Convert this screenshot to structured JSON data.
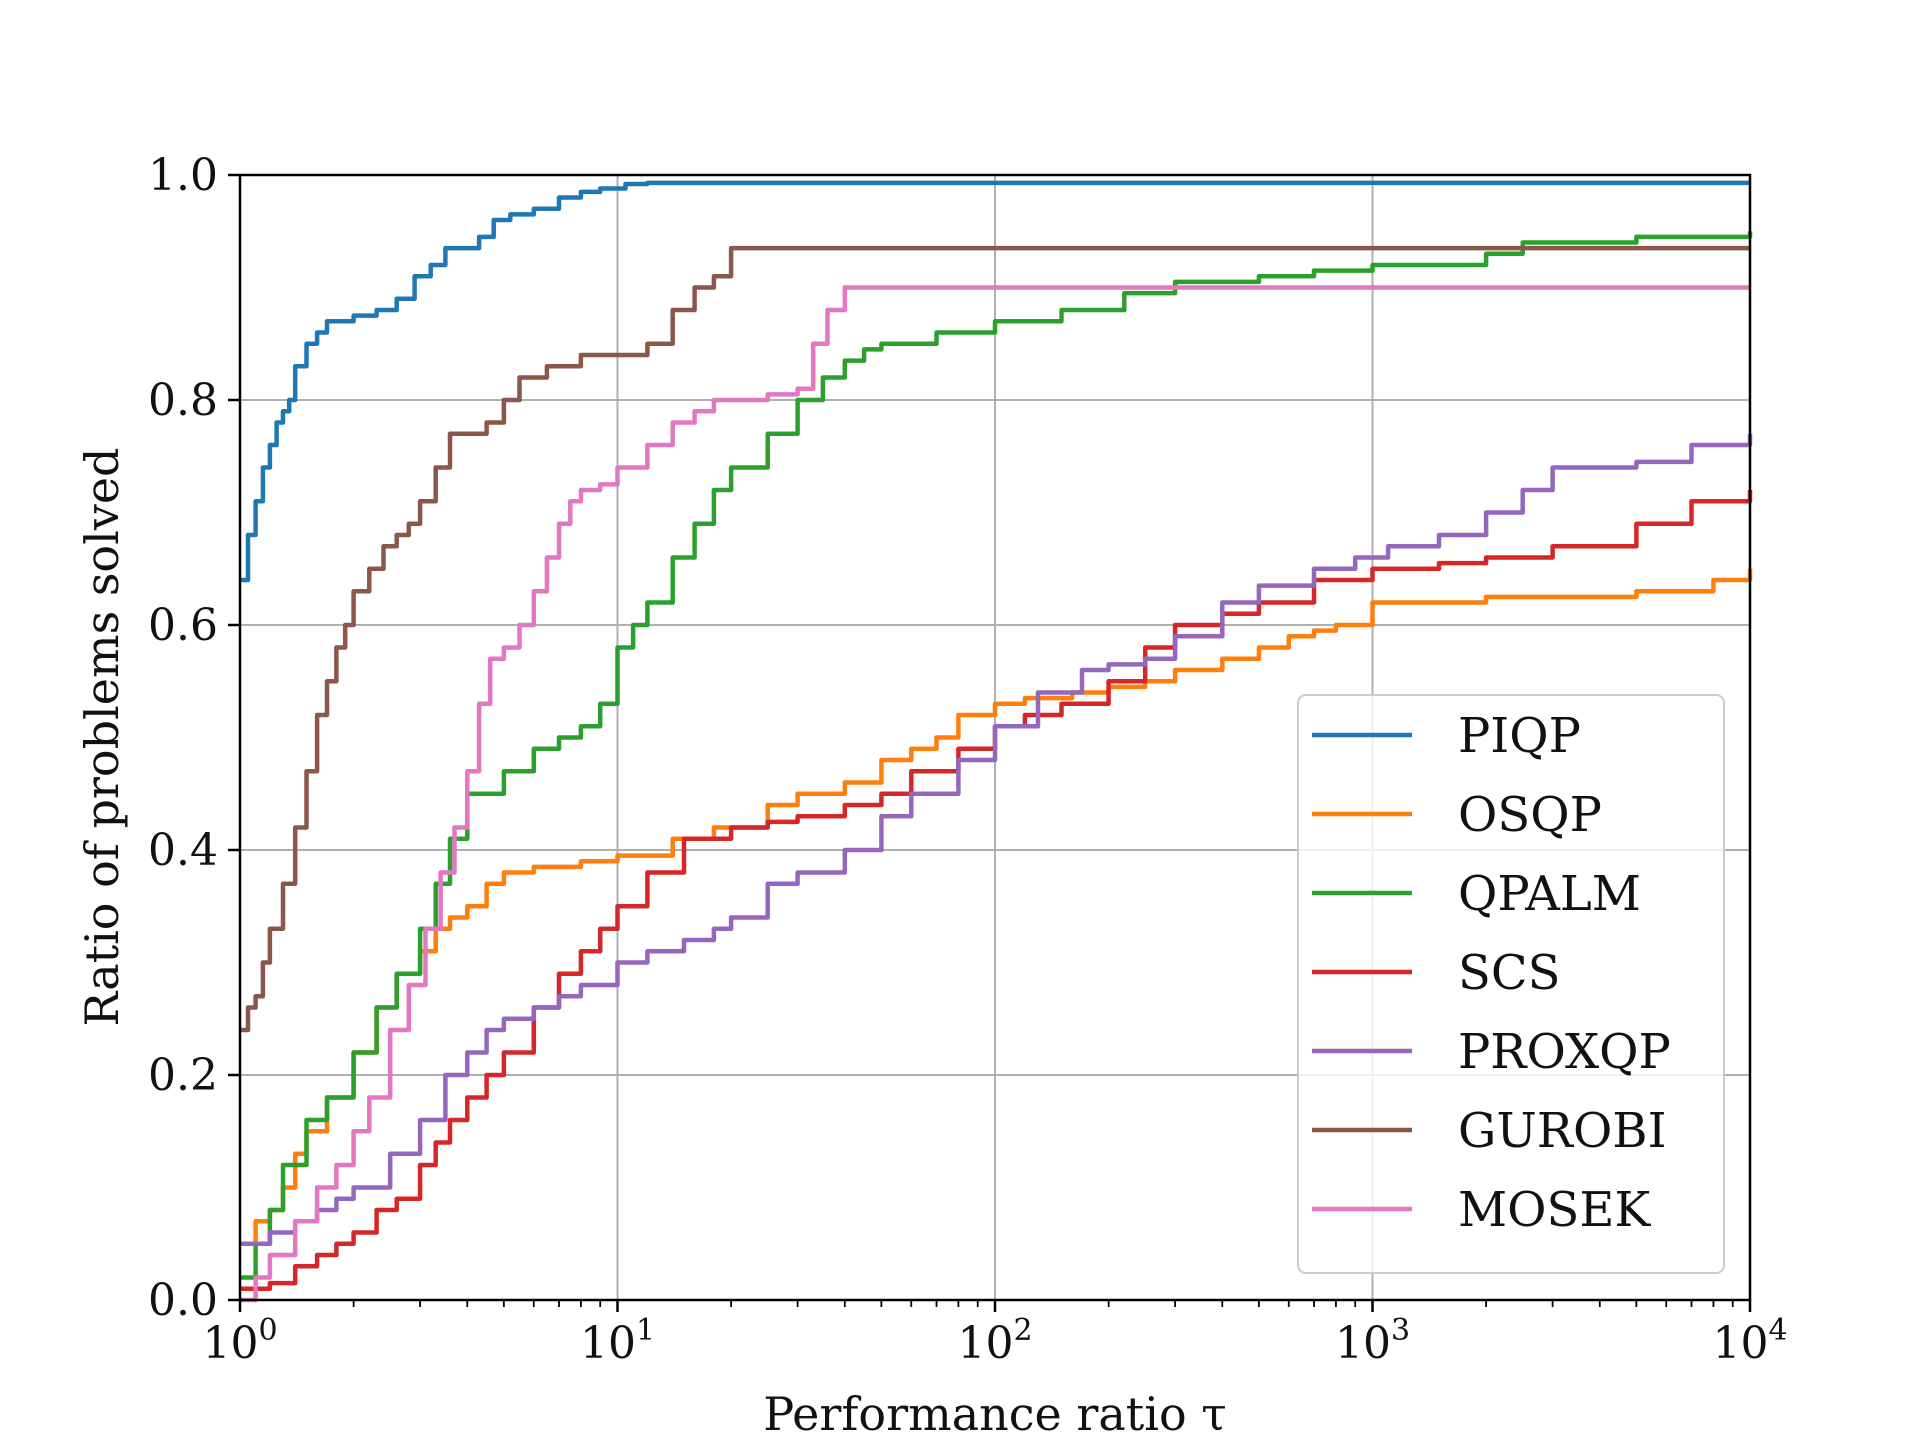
{
  "chart_data": {
    "type": "line",
    "xlabel": "Performance ratio τ",
    "ylabel": "Ratio of problems solved",
    "xscale": "log",
    "xlim": [
      1,
      10000
    ],
    "ylim": [
      0,
      1
    ],
    "grid": true,
    "legend_position": "lower-right",
    "x_ticks": [
      {
        "value": 1,
        "base": "10",
        "exp": "0"
      },
      {
        "value": 10,
        "base": "10",
        "exp": "1"
      },
      {
        "value": 100,
        "base": "10",
        "exp": "2"
      },
      {
        "value": 1000,
        "base": "10",
        "exp": "3"
      },
      {
        "value": 10000,
        "base": "10",
        "exp": "4"
      }
    ],
    "y_ticks": [
      {
        "value": 0.0,
        "label": "0.0"
      },
      {
        "value": 0.2,
        "label": "0.2"
      },
      {
        "value": 0.4,
        "label": "0.4"
      },
      {
        "value": 0.6,
        "label": "0.6"
      },
      {
        "value": 0.8,
        "label": "0.8"
      },
      {
        "value": 1.0,
        "label": "1.0"
      }
    ],
    "series": [
      {
        "name": "PIQP",
        "color": "#1f77b4",
        "x": [
          1,
          1.05,
          1.1,
          1.15,
          1.2,
          1.25,
          1.3,
          1.35,
          1.4,
          1.5,
          1.6,
          1.7,
          2.0,
          2.3,
          2.6,
          2.9,
          3.2,
          3.5,
          4.3,
          4.7,
          5.2,
          6.0,
          7.0,
          8.0,
          9.0,
          10.5,
          12,
          100,
          1000,
          10000
        ],
        "y": [
          0.64,
          0.68,
          0.71,
          0.74,
          0.76,
          0.78,
          0.79,
          0.8,
          0.83,
          0.85,
          0.86,
          0.87,
          0.875,
          0.88,
          0.89,
          0.91,
          0.92,
          0.935,
          0.945,
          0.96,
          0.965,
          0.97,
          0.98,
          0.985,
          0.988,
          0.992,
          0.993,
          0.993,
          0.993,
          0.993
        ]
      },
      {
        "name": "OSQP",
        "color": "#ff7f0e",
        "x": [
          1,
          1.1,
          1.2,
          1.3,
          1.4,
          1.5,
          1.7,
          2.0,
          2.3,
          2.6,
          3.0,
          3.3,
          3.6,
          4.0,
          4.5,
          5.0,
          6.0,
          8.0,
          10,
          14,
          18,
          25,
          30,
          40,
          50,
          60,
          70,
          80,
          100,
          120,
          160,
          200,
          250,
          300,
          400,
          500,
          600,
          700,
          800,
          1000,
          2000,
          3000,
          5000,
          8000,
          10000
        ],
        "y": [
          0.05,
          0.07,
          0.08,
          0.1,
          0.13,
          0.15,
          0.18,
          0.22,
          0.26,
          0.29,
          0.31,
          0.33,
          0.34,
          0.35,
          0.37,
          0.38,
          0.385,
          0.39,
          0.395,
          0.41,
          0.42,
          0.44,
          0.45,
          0.46,
          0.48,
          0.49,
          0.5,
          0.52,
          0.53,
          0.535,
          0.54,
          0.545,
          0.55,
          0.56,
          0.57,
          0.58,
          0.59,
          0.595,
          0.6,
          0.62,
          0.625,
          0.625,
          0.63,
          0.64,
          0.65
        ]
      },
      {
        "name": "QPALM",
        "color": "#2ca02c",
        "x": [
          1,
          1.1,
          1.2,
          1.3,
          1.5,
          1.7,
          2.0,
          2.3,
          2.6,
          3.0,
          3.3,
          3.6,
          4.0,
          5.0,
          6.0,
          7.0,
          8.0,
          9.0,
          10,
          11,
          12,
          14,
          16,
          18,
          20,
          25,
          30,
          35,
          40,
          45,
          50,
          70,
          100,
          150,
          220,
          300,
          500,
          700,
          1000,
          2000,
          2500,
          5000,
          10000
        ],
        "y": [
          0.02,
          0.05,
          0.08,
          0.12,
          0.16,
          0.18,
          0.22,
          0.26,
          0.29,
          0.33,
          0.37,
          0.41,
          0.45,
          0.47,
          0.49,
          0.5,
          0.51,
          0.53,
          0.58,
          0.6,
          0.62,
          0.66,
          0.69,
          0.72,
          0.74,
          0.77,
          0.8,
          0.82,
          0.835,
          0.845,
          0.85,
          0.86,
          0.87,
          0.88,
          0.895,
          0.905,
          0.91,
          0.915,
          0.92,
          0.93,
          0.94,
          0.945,
          0.95
        ]
      },
      {
        "name": "SCS",
        "color": "#d62728",
        "x": [
          1,
          1.2,
          1.4,
          1.6,
          1.8,
          2.0,
          2.3,
          2.6,
          3.0,
          3.3,
          3.6,
          4.0,
          4.5,
          5.0,
          6.0,
          7.0,
          8.0,
          9.0,
          10,
          12,
          15,
          20,
          25,
          30,
          40,
          50,
          60,
          80,
          100,
          120,
          150,
          200,
          250,
          300,
          400,
          500,
          700,
          1000,
          1500,
          2000,
          3000,
          5000,
          7000,
          10000
        ],
        "y": [
          0.01,
          0.015,
          0.03,
          0.04,
          0.05,
          0.06,
          0.08,
          0.09,
          0.12,
          0.14,
          0.16,
          0.18,
          0.2,
          0.22,
          0.26,
          0.29,
          0.31,
          0.33,
          0.35,
          0.38,
          0.41,
          0.42,
          0.425,
          0.43,
          0.44,
          0.45,
          0.47,
          0.49,
          0.51,
          0.52,
          0.53,
          0.55,
          0.58,
          0.6,
          0.61,
          0.62,
          0.64,
          0.65,
          0.655,
          0.66,
          0.67,
          0.69,
          0.71,
          0.72
        ]
      },
      {
        "name": "PROXQP",
        "color": "#9467bd",
        "x": [
          1,
          1.2,
          1.4,
          1.6,
          1.8,
          2.0,
          2.5,
          3.0,
          3.5,
          4.0,
          4.5,
          5.0,
          6.0,
          7.0,
          8.0,
          10,
          12,
          15,
          18,
          20,
          25,
          30,
          40,
          50,
          60,
          80,
          100,
          130,
          170,
          200,
          250,
          300,
          400,
          500,
          700,
          900,
          1100,
          1500,
          2000,
          2500,
          3000,
          5000,
          7000,
          10000
        ],
        "y": [
          0.05,
          0.06,
          0.07,
          0.08,
          0.09,
          0.1,
          0.13,
          0.16,
          0.2,
          0.22,
          0.24,
          0.25,
          0.26,
          0.27,
          0.28,
          0.3,
          0.31,
          0.32,
          0.33,
          0.34,
          0.37,
          0.38,
          0.4,
          0.43,
          0.45,
          0.48,
          0.51,
          0.54,
          0.56,
          0.565,
          0.57,
          0.59,
          0.62,
          0.635,
          0.65,
          0.66,
          0.67,
          0.68,
          0.7,
          0.72,
          0.74,
          0.745,
          0.76,
          0.77
        ]
      },
      {
        "name": "GUROBI",
        "color": "#8c564b",
        "x": [
          1,
          1.05,
          1.1,
          1.15,
          1.2,
          1.3,
          1.4,
          1.5,
          1.6,
          1.7,
          1.8,
          1.9,
          2.0,
          2.2,
          2.4,
          2.6,
          2.8,
          3.0,
          3.3,
          3.6,
          4.0,
          4.5,
          5.0,
          5.5,
          6.5,
          8.0,
          10,
          12,
          14,
          16,
          18,
          20,
          30,
          100,
          1000,
          10000
        ],
        "y": [
          0.24,
          0.26,
          0.27,
          0.3,
          0.33,
          0.37,
          0.42,
          0.47,
          0.52,
          0.55,
          0.58,
          0.6,
          0.63,
          0.65,
          0.67,
          0.68,
          0.69,
          0.71,
          0.74,
          0.77,
          0.77,
          0.78,
          0.8,
          0.82,
          0.83,
          0.84,
          0.84,
          0.85,
          0.88,
          0.9,
          0.91,
          0.935,
          0.935,
          0.935,
          0.935,
          0.935
        ]
      },
      {
        "name": "MOSEK",
        "color": "#e377c2",
        "x": [
          1,
          1.1,
          1.2,
          1.4,
          1.6,
          1.8,
          2.0,
          2.2,
          2.5,
          2.8,
          3.1,
          3.4,
          3.7,
          4.0,
          4.3,
          4.6,
          5.0,
          5.5,
          6.0,
          6.5,
          7.0,
          7.5,
          8.0,
          9.0,
          10,
          12,
          14,
          16,
          18,
          20,
          25,
          30,
          33,
          36,
          40,
          100,
          1000,
          10000
        ],
        "y": [
          0.0,
          0.02,
          0.04,
          0.07,
          0.1,
          0.12,
          0.15,
          0.18,
          0.24,
          0.28,
          0.33,
          0.38,
          0.42,
          0.47,
          0.53,
          0.57,
          0.58,
          0.6,
          0.63,
          0.66,
          0.69,
          0.71,
          0.72,
          0.725,
          0.74,
          0.76,
          0.78,
          0.79,
          0.8,
          0.8,
          0.805,
          0.81,
          0.85,
          0.88,
          0.9,
          0.9,
          0.9,
          0.9
        ]
      }
    ]
  }
}
